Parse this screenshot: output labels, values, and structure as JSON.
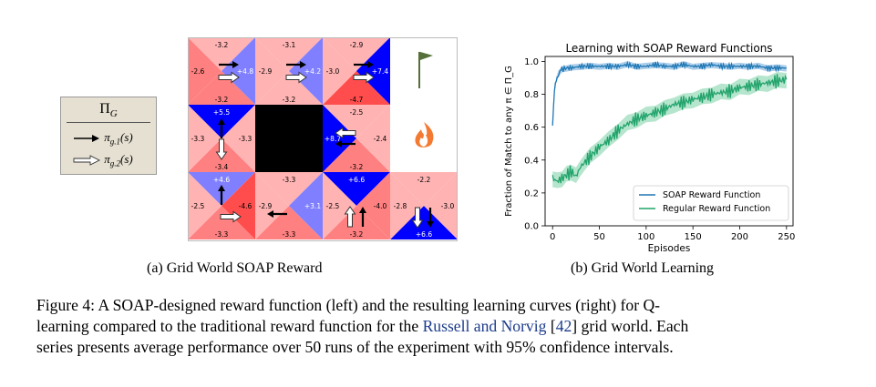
{
  "legend": {
    "title": "Π_G",
    "items": [
      {
        "label": "π_{g.1}(s)",
        "arrow": "filled"
      },
      {
        "label": "π_{g.2}(s)",
        "arrow": "hollow"
      }
    ]
  },
  "grid": {
    "rows": 3,
    "cols": 4,
    "colors": {
      "light": "#ffb3b3",
      "mid": "#ff8080",
      "dark": "#ff4d4d",
      "blue": "#0000ff",
      "lightblue": "#7f7fff",
      "wall": "#000000"
    },
    "cells": [
      {
        "r": 0,
        "c": 0,
        "type": "normal",
        "top": "-3.2",
        "left": "-2.6",
        "right": "+4.8",
        "bottom": "-3.2",
        "shade": {
          "top": "light",
          "left": "mid",
          "right": "lightblue",
          "bottom": "mid"
        },
        "arrows": [
          "right-filled",
          "right-hollow"
        ]
      },
      {
        "r": 0,
        "c": 1,
        "type": "normal",
        "top": "-3.1",
        "left": "-2.9",
        "right": "+4.2",
        "bottom": "-3.2",
        "shade": {
          "top": "light",
          "left": "light",
          "right": "lightblue",
          "bottom": "light"
        },
        "arrows": [
          "right-filled",
          "right-hollow"
        ]
      },
      {
        "r": 0,
        "c": 2,
        "type": "normal",
        "top": "-2.9",
        "left": "-3.0",
        "right": "+7.4",
        "bottom": "-4.7",
        "shade": {
          "top": "light",
          "left": "light",
          "right": "blue",
          "bottom": "dark"
        },
        "arrows": [
          "right-filled",
          "right-hollow"
        ]
      },
      {
        "r": 0,
        "c": 3,
        "type": "goal",
        "icon": "flag-icon"
      },
      {
        "r": 1,
        "c": 0,
        "type": "normal",
        "top": "+5.5",
        "left": "-3.3",
        "right": "-3.3",
        "bottom": "-3.4",
        "shade": {
          "top": "blue",
          "left": "light",
          "right": "light",
          "bottom": "mid"
        },
        "arrows": [
          "up-filled",
          "down-hollow"
        ]
      },
      {
        "r": 1,
        "c": 1,
        "type": "wall"
      },
      {
        "r": 1,
        "c": 2,
        "type": "normal",
        "top": "-2.5",
        "left": "+8.7",
        "right": "-2.4",
        "bottom": "-3.2",
        "shade": {
          "top": "light",
          "left": "blue",
          "right": "light",
          "bottom": "mid"
        },
        "arrows": [
          "left-hollow",
          "left-filled"
        ]
      },
      {
        "r": 1,
        "c": 3,
        "type": "fire",
        "icon": "fire-icon"
      },
      {
        "r": 2,
        "c": 0,
        "type": "normal",
        "top": "+4.6",
        "left": "-2.5",
        "right": "-4.6",
        "bottom": "-3.3",
        "shade": {
          "top": "lightblue",
          "left": "light",
          "right": "dark",
          "bottom": "mid"
        },
        "arrows": [
          "up-filled",
          "right-hollow"
        ]
      },
      {
        "r": 2,
        "c": 1,
        "type": "normal",
        "top": "-3.3",
        "left": "-2.9",
        "right": "+3.1",
        "bottom": "-3.3",
        "shade": {
          "top": "light",
          "left": "light",
          "right": "lightblue",
          "bottom": "mid"
        },
        "arrows": [
          "left-filled"
        ]
      },
      {
        "r": 2,
        "c": 2,
        "type": "normal",
        "top": "+6.6",
        "left": "-2.5",
        "right": "-4.0",
        "bottom": "-3.2",
        "shade": {
          "top": "blue",
          "left": "light",
          "right": "mid",
          "bottom": "mid"
        },
        "arrows": [
          "up-hollow",
          "up-filled"
        ]
      },
      {
        "r": 2,
        "c": 3,
        "type": "normal",
        "top": "-2.2",
        "left": "-2.8",
        "right": "-3.0",
        "bottom": "+6.6",
        "shade": {
          "top": "light",
          "left": "light",
          "right": "light",
          "bottom": "blue"
        },
        "arrows": [
          "down-hollow",
          "down-filled"
        ]
      }
    ]
  },
  "chart_data": {
    "type": "line",
    "title": "Learning with SOAP Reward Functions",
    "xlabel": "Episodes",
    "ylabel": "Fraction of Match to any π ∈ Π_G",
    "xlim": [
      -8,
      257
    ],
    "ylim": [
      0.0,
      1.03
    ],
    "xticks": [
      0,
      50,
      100,
      150,
      200,
      250
    ],
    "yticks": [
      0.0,
      0.2,
      0.4,
      0.6,
      0.8,
      1.0
    ],
    "grid": false,
    "legend_position": "lower-right",
    "series": [
      {
        "name": "SOAP Reward Function",
        "color": "#1f77b4",
        "band_color": "#9ec5e6",
        "x": [
          0,
          2,
          4,
          6,
          8,
          10,
          15,
          20,
          30,
          40,
          50,
          60,
          70,
          80,
          90,
          100,
          110,
          120,
          130,
          140,
          150,
          160,
          170,
          180,
          190,
          200,
          210,
          220,
          230,
          240,
          250
        ],
        "values": [
          0.61,
          0.82,
          0.89,
          0.92,
          0.94,
          0.95,
          0.96,
          0.96,
          0.97,
          0.97,
          0.97,
          0.97,
          0.97,
          0.98,
          0.97,
          0.97,
          0.98,
          0.97,
          0.97,
          0.98,
          0.97,
          0.97,
          0.98,
          0.97,
          0.97,
          0.97,
          0.97,
          0.97,
          0.96,
          0.96,
          0.96
        ],
        "band": 0.02
      },
      {
        "name": "Regular Reward Function",
        "color": "#21a36b",
        "band_color": "#a8e0c4",
        "x": [
          0,
          5,
          10,
          15,
          20,
          25,
          30,
          40,
          50,
          60,
          70,
          80,
          90,
          100,
          110,
          120,
          130,
          140,
          150,
          160,
          170,
          180,
          190,
          200,
          210,
          220,
          230,
          240,
          250
        ],
        "values": [
          0.29,
          0.27,
          0.29,
          0.31,
          0.33,
          0.3,
          0.36,
          0.42,
          0.48,
          0.52,
          0.58,
          0.62,
          0.65,
          0.67,
          0.69,
          0.71,
          0.74,
          0.75,
          0.77,
          0.78,
          0.8,
          0.81,
          0.82,
          0.84,
          0.85,
          0.86,
          0.87,
          0.88,
          0.89
        ],
        "band": 0.05
      }
    ]
  },
  "captions": {
    "sub_a": "(a) Grid World SOAP Reward",
    "sub_b": "(b) Grid World Learning",
    "figure_1": "Figure 4: A SOAP-designed reward function (left) and the resulting learning curves (right) for Q-",
    "figure_2a": "learning compared to the traditional reward function for the ",
    "figure_link": "Russell and Norvig",
    "figure_2b": " [",
    "figure_ref": "42",
    "figure_2c": "] grid world. Each",
    "figure_3": "series presents average performance over 50 runs of the experiment with 95% confidence intervals."
  }
}
